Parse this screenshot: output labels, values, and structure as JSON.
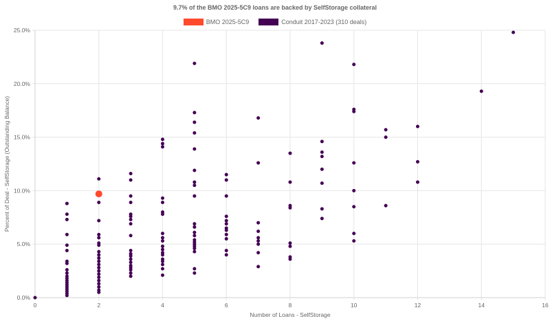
{
  "chart_data": {
    "type": "scatter",
    "title": "9.7% of the BMO 2025-5C9 loans are backed by SelfStorage collateral",
    "xlabel": "Number of Loans - SelfStorage",
    "ylabel": "Percent of Deal - SelfStorage (Outstanding Balance)",
    "xlim": [
      0,
      16
    ],
    "ylim": [
      0,
      25
    ],
    "x_ticks": [
      "0",
      "2",
      "4",
      "6",
      "8",
      "10",
      "12",
      "14",
      "16"
    ],
    "y_ticks": [
      "0.0%",
      "5.0%",
      "10.0%",
      "15.0%",
      "20.0%",
      "25.0%"
    ],
    "grid": true,
    "legend_position": "top",
    "series": [
      {
        "name": "BMO 2025-5C9",
        "color": "#ff4a2d",
        "points": [
          [
            2,
            9.7
          ]
        ]
      },
      {
        "name": "Conduit 2017-2023 (310 deals)",
        "color": "#440154",
        "points": [
          [
            0,
            0.0
          ],
          [
            1,
            8.8
          ],
          [
            1,
            7.8
          ],
          [
            1,
            7.3
          ],
          [
            1,
            5.9
          ],
          [
            1,
            4.9
          ],
          [
            1,
            4.4
          ],
          [
            1,
            3.4
          ],
          [
            1,
            3.2
          ],
          [
            1,
            2.6
          ],
          [
            1,
            2.3
          ],
          [
            1,
            2.0
          ],
          [
            1,
            1.8
          ],
          [
            1,
            1.6
          ],
          [
            1,
            1.4
          ],
          [
            1,
            1.2
          ],
          [
            1,
            1.0
          ],
          [
            1,
            0.8
          ],
          [
            1,
            0.6
          ],
          [
            1,
            0.4
          ],
          [
            1,
            0.2
          ],
          [
            2,
            11.1
          ],
          [
            2,
            8.9
          ],
          [
            2,
            7.2
          ],
          [
            2,
            5.9
          ],
          [
            2,
            5.6
          ],
          [
            2,
            5.1
          ],
          [
            2,
            4.9
          ],
          [
            2,
            4.3
          ],
          [
            2,
            4.0
          ],
          [
            2,
            3.7
          ],
          [
            2,
            3.4
          ],
          [
            2,
            3.1
          ],
          [
            2,
            2.8
          ],
          [
            2,
            2.5
          ],
          [
            2,
            2.2
          ],
          [
            2,
            1.9
          ],
          [
            2,
            1.6
          ],
          [
            2,
            1.3
          ],
          [
            2,
            1.0
          ],
          [
            2,
            0.7
          ],
          [
            2,
            0.5
          ],
          [
            3,
            11.6
          ],
          [
            3,
            11.0
          ],
          [
            3,
            9.5
          ],
          [
            3,
            8.9
          ],
          [
            3,
            7.8
          ],
          [
            3,
            7.6
          ],
          [
            3,
            7.3
          ],
          [
            3,
            6.9
          ],
          [
            3,
            5.8
          ],
          [
            3,
            4.4
          ],
          [
            3,
            4.1
          ],
          [
            3,
            3.9
          ],
          [
            3,
            3.6
          ],
          [
            3,
            3.3
          ],
          [
            3,
            3.0
          ],
          [
            3,
            2.8
          ],
          [
            3,
            2.6
          ],
          [
            3,
            2.3
          ],
          [
            3,
            2.0
          ],
          [
            4,
            14.8
          ],
          [
            4,
            14.4
          ],
          [
            4,
            14.1
          ],
          [
            4,
            9.3
          ],
          [
            4,
            8.9
          ],
          [
            4,
            8.0
          ],
          [
            4,
            7.8
          ],
          [
            4,
            6.0
          ],
          [
            4,
            5.6
          ],
          [
            4,
            5.3
          ],
          [
            4,
            4.8
          ],
          [
            4,
            4.5
          ],
          [
            4,
            4.2
          ],
          [
            4,
            4.0
          ],
          [
            4,
            3.6
          ],
          [
            4,
            3.4
          ],
          [
            4,
            3.1
          ],
          [
            4,
            2.7
          ],
          [
            4,
            2.1
          ],
          [
            5,
            21.9
          ],
          [
            5,
            17.3
          ],
          [
            5,
            16.4
          ],
          [
            5,
            15.4
          ],
          [
            5,
            13.9
          ],
          [
            5,
            11.9
          ],
          [
            5,
            10.8
          ],
          [
            5,
            10.5
          ],
          [
            5,
            9.5
          ],
          [
            5,
            6.9
          ],
          [
            5,
            6.6
          ],
          [
            5,
            6.1
          ],
          [
            5,
            5.8
          ],
          [
            5,
            5.4
          ],
          [
            5,
            5.2
          ],
          [
            5,
            5.0
          ],
          [
            5,
            4.8
          ],
          [
            5,
            4.6
          ],
          [
            5,
            4.3
          ],
          [
            5,
            2.7
          ],
          [
            5,
            2.3
          ],
          [
            6,
            11.5
          ],
          [
            6,
            11.0
          ],
          [
            6,
            9.5
          ],
          [
            6,
            7.6
          ],
          [
            6,
            7.2
          ],
          [
            6,
            6.9
          ],
          [
            6,
            6.5
          ],
          [
            6,
            6.3
          ],
          [
            6,
            5.9
          ],
          [
            6,
            5.5
          ],
          [
            6,
            4.4
          ],
          [
            6,
            4.0
          ],
          [
            7,
            16.8
          ],
          [
            7,
            12.6
          ],
          [
            7,
            7.0
          ],
          [
            7,
            6.2
          ],
          [
            7,
            5.6
          ],
          [
            7,
            5.3
          ],
          [
            7,
            5.0
          ],
          [
            7,
            4.2
          ],
          [
            7,
            2.9
          ],
          [
            8,
            13.5
          ],
          [
            8,
            10.8
          ],
          [
            8,
            8.6
          ],
          [
            8,
            8.4
          ],
          [
            8,
            5.1
          ],
          [
            8,
            4.8
          ],
          [
            8,
            3.8
          ],
          [
            8,
            3.6
          ],
          [
            9,
            23.8
          ],
          [
            9,
            14.6
          ],
          [
            9,
            13.6
          ],
          [
            9,
            13.2
          ],
          [
            9,
            12.0
          ],
          [
            9,
            10.7
          ],
          [
            9,
            8.3
          ],
          [
            9,
            7.4
          ],
          [
            10,
            21.8
          ],
          [
            10,
            17.6
          ],
          [
            10,
            17.4
          ],
          [
            10,
            12.6
          ],
          [
            10,
            10.0
          ],
          [
            10,
            8.5
          ],
          [
            10,
            6.0
          ],
          [
            10,
            5.3
          ],
          [
            11,
            15.7
          ],
          [
            11,
            15.0
          ],
          [
            11,
            8.6
          ],
          [
            12,
            16.0
          ],
          [
            12,
            12.7
          ],
          [
            12,
            10.8
          ],
          [
            14,
            19.3
          ],
          [
            15,
            24.8
          ]
        ]
      }
    ]
  }
}
